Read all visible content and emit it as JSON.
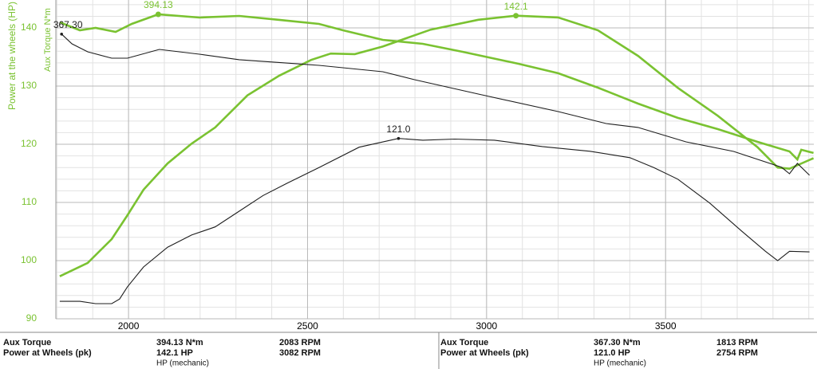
{
  "chart_data": {
    "type": "line",
    "ylabel": "Power at the wheels (HP)",
    "y2label": "Aux Torque N*m",
    "xlim": [
      1797,
      3914
    ],
    "xticks": [
      2000,
      2500,
      3000,
      3500
    ],
    "ylim": [
      90,
      144.8
    ],
    "yticks": [
      90,
      100,
      110,
      120,
      130,
      140
    ],
    "y2lim": [
      -19.3,
      413.6
    ],
    "grid": true,
    "minor_grid": true,
    "series": [
      {
        "color": "#7ac231",
        "axis": "y",
        "x": [
          1808,
          1886,
          1953,
          1997,
          2042,
          2109,
          2176,
          2242,
          2332,
          2421,
          2510,
          2565,
          2632,
          2710,
          2844,
          2977,
          3082,
          3200,
          3311,
          3423,
          3534,
          3646,
          3757,
          3813,
          3846,
          3913
        ],
        "values": [
          97.3,
          99.6,
          103.7,
          107.8,
          112.2,
          116.7,
          120.1,
          122.9,
          128.4,
          131.8,
          134.5,
          135.6,
          135.5,
          136.8,
          139.7,
          141.4,
          142.1,
          141.8,
          139.6,
          135.2,
          129.7,
          124.9,
          119.5,
          116.0,
          115.8,
          117.6
        ]
      },
      {
        "color": "#7ac231",
        "axis": "y2",
        "x": [
          1808,
          1864,
          1908,
          1964,
          2009,
          2083,
          2198,
          2309,
          2421,
          2532,
          2599,
          2710,
          2822,
          2933,
          3089,
          3200,
          3311,
          3423,
          3534,
          3646,
          3757,
          3846,
          3868,
          3879,
          3913
        ],
        "values": [
          383.3,
          372.5,
          375.7,
          370.3,
          381.1,
          394.13,
          389.8,
          392.0,
          386.6,
          381.1,
          372.5,
          359.5,
          354.1,
          343.3,
          327.0,
          314.1,
          294.6,
          272.9,
          253.5,
          238.3,
          221.0,
          208.0,
          197.2,
          210.2,
          205.9
        ]
      },
      {
        "color": "#1e1e1e",
        "axis": "y",
        "x": [
          1808,
          1864,
          1908,
          1953,
          1975,
          1997,
          2042,
          2109,
          2176,
          2242,
          2309,
          2376,
          2443,
          2532,
          2644,
          2754,
          2822,
          2911,
          3022,
          3156,
          3289,
          3400,
          3467,
          3534,
          3623,
          3712,
          3779,
          3813,
          3846,
          3902
        ],
        "values": [
          93.0,
          93.0,
          92.6,
          92.6,
          93.4,
          95.5,
          98.9,
          102.3,
          104.4,
          105.8,
          108.5,
          111.2,
          113.3,
          116.0,
          119.5,
          121.0,
          120.7,
          120.9,
          120.7,
          119.6,
          118.8,
          117.7,
          116.0,
          114.0,
          109.9,
          105.1,
          101.6,
          100.0,
          101.6,
          101.5
        ]
      },
      {
        "color": "#1e1e1e",
        "axis": "y2",
        "x": [
          1813,
          1842,
          1886,
          1953,
          1997,
          2086,
          2198,
          2309,
          2532,
          2710,
          2799,
          2977,
          3200,
          3334,
          3423,
          3557,
          3690,
          3824,
          3846,
          3868,
          3902
        ],
        "values": [
          367.3,
          354.1,
          343.3,
          334.6,
          334.6,
          346.5,
          340.0,
          332.5,
          324.9,
          316.2,
          305.4,
          285.9,
          262.1,
          245.9,
          240.5,
          221.0,
          208.0,
          186.4,
          177.7,
          191.7,
          175.6
        ]
      }
    ],
    "annotations": [
      {
        "label": "394.13",
        "x": 2083,
        "y": 394.13,
        "axis": "y2",
        "color": "#7ac231"
      },
      {
        "label": "142.1",
        "x": 3082,
        "y": 142.1,
        "axis": "y",
        "color": "#7ac231"
      },
      {
        "label": "367.30",
        "x": 1813,
        "y": 367.3,
        "axis": "y2",
        "color": "#1e1e1e"
      },
      {
        "label": "121.0",
        "x": 2754,
        "y": 121.0,
        "axis": "y",
        "color": "#1e1e1e"
      }
    ]
  },
  "summary": [
    {
      "rows": [
        [
          "Aux Torque",
          "394.13 N*m",
          "2083 RPM"
        ],
        [
          "Power at Wheels (pk)",
          "142.1 HP",
          "3082 RPM"
        ]
      ],
      "note": "HP (mechanic)"
    },
    {
      "rows": [
        [
          "Aux Torque",
          "367.30 N*m",
          "1813 RPM"
        ],
        [
          "Power at Wheels (pk)",
          "121.0 HP",
          "2754 RPM"
        ]
      ],
      "note": "HP (mechanic)"
    }
  ]
}
